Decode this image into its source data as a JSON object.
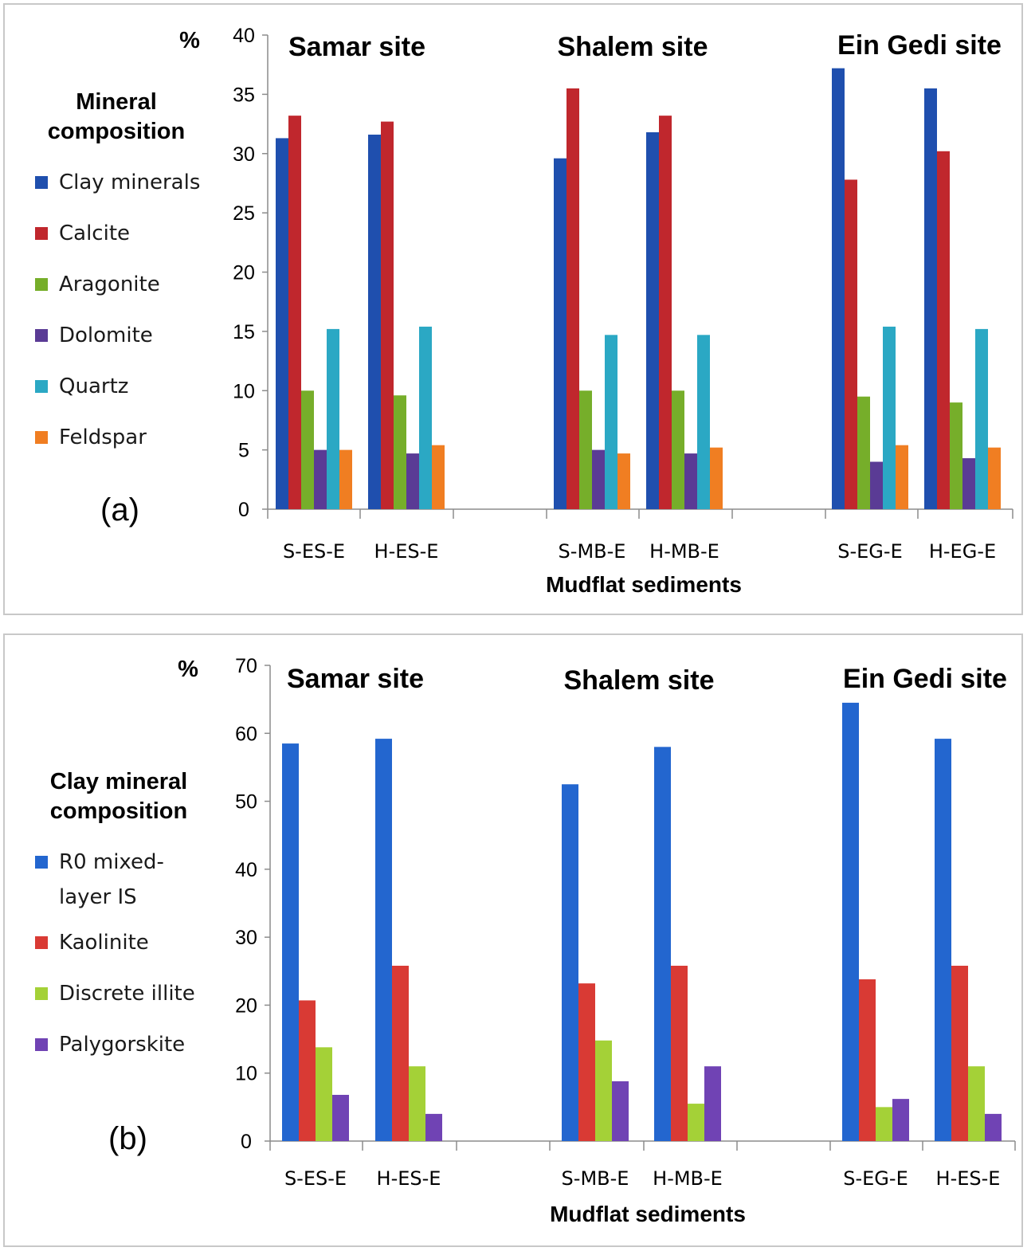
{
  "chart_data": [
    {
      "type": "bar",
      "panel_label": "(a)",
      "title": "",
      "ylabel": "%",
      "xlabel": "Mudflat sediments",
      "ylim": [
        0,
        40
      ],
      "yticks": [
        0,
        5,
        10,
        15,
        20,
        25,
        30,
        35,
        40
      ],
      "legend_title": [
        "Mineral",
        "composition"
      ],
      "sites": [
        "Samar site",
        "Shalem site",
        "Ein Gedi site"
      ],
      "categories": [
        "S-ES-E",
        "H-ES-E",
        "S-MB-E",
        "H-MB-E",
        "S-EG-E",
        "H-EG-E"
      ],
      "series": [
        {
          "name": "Clay minerals",
          "color": "#1f4fae",
          "values": [
            31.3,
            31.6,
            29.6,
            31.8,
            37.2,
            35.5
          ]
        },
        {
          "name": "Calcite",
          "color": "#c0272d",
          "values": [
            33.2,
            32.7,
            35.5,
            33.2,
            27.8,
            30.2
          ]
        },
        {
          "name": "Aragonite",
          "color": "#76ae2a",
          "values": [
            10.0,
            9.6,
            10.0,
            10.0,
            9.5,
            9.0
          ]
        },
        {
          "name": "Dolomite",
          "color": "#5a3b95",
          "values": [
            5.0,
            4.7,
            5.0,
            4.7,
            4.0,
            4.3
          ]
        },
        {
          "name": "Quartz",
          "color": "#2ba8c4",
          "values": [
            15.2,
            15.4,
            14.7,
            14.7,
            15.4,
            15.2
          ]
        },
        {
          "name": "Feldspar",
          "color": "#f07e22",
          "values": [
            5.0,
            5.4,
            4.7,
            5.2,
            5.4,
            5.2
          ]
        }
      ]
    },
    {
      "type": "bar",
      "panel_label": "(b)",
      "title": "",
      "ylabel": "%",
      "xlabel": "Mudflat sediments",
      "ylim": [
        0,
        70
      ],
      "yticks": [
        0,
        10,
        20,
        30,
        40,
        50,
        60,
        70
      ],
      "legend_title": [
        "Clay mineral",
        "composition"
      ],
      "sites": [
        "Samar site",
        "Shalem site",
        "Ein Gedi site"
      ],
      "categories": [
        "S-ES-E",
        "H-ES-E",
        "S-MB-E",
        "H-MB-E",
        "S-EG-E",
        "H-ES-E"
      ],
      "series": [
        {
          "name": "R0 mixed-layer IS",
          "legend_lines": [
            "R0 mixed-",
            "layer IS"
          ],
          "color": "#2366cf",
          "values": [
            58.5,
            59.2,
            52.5,
            58.0,
            64.5,
            59.2
          ]
        },
        {
          "name": "Kaolinite",
          "color": "#d93a34",
          "values": [
            20.7,
            25.8,
            23.2,
            25.8,
            23.8,
            25.8
          ]
        },
        {
          "name": "Discrete illite",
          "color": "#a4d137",
          "values": [
            13.8,
            11.0,
            14.8,
            5.5,
            5.0,
            11.0
          ]
        },
        {
          "name": "Palygorskite",
          "color": "#7043b4",
          "values": [
            6.8,
            4.0,
            8.8,
            11.0,
            6.2,
            4.0
          ]
        }
      ]
    }
  ]
}
